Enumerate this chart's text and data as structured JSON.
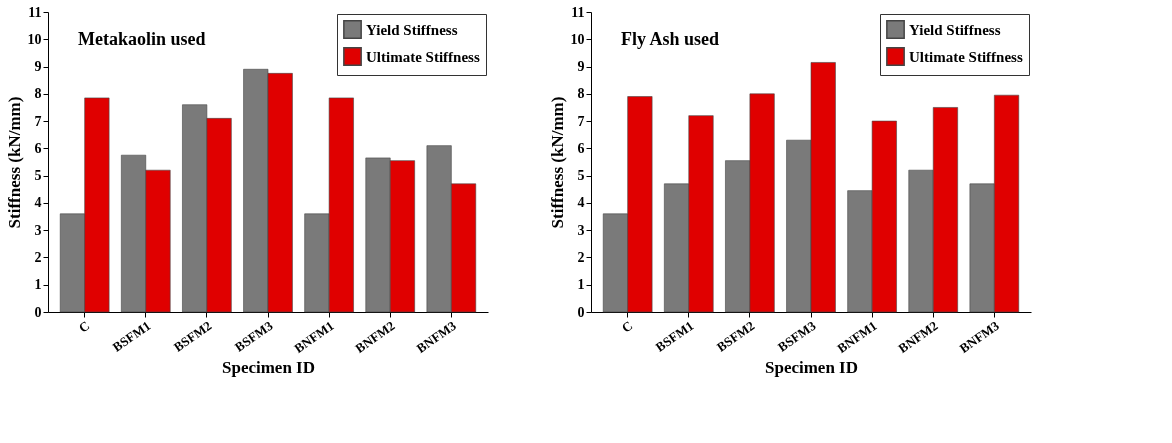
{
  "chart_data": [
    {
      "type": "bar",
      "title": "Metakaolin used",
      "xlabel": "Specimen ID",
      "ylabel": "Stiffness (kN/mm)",
      "categories": [
        "C",
        "BSFM1",
        "BSFM2",
        "BSFM3",
        "BNFM1",
        "BNFM2",
        "BNFM3"
      ],
      "series": [
        {
          "name": "Yield Stiffness",
          "color": "#7a7a7a",
          "values": [
            3.6,
            5.75,
            7.6,
            8.9,
            3.6,
            5.65,
            6.1
          ]
        },
        {
          "name": "Ultimate Stiffness",
          "color": "#e00000",
          "values": [
            7.85,
            5.2,
            7.1,
            8.75,
            7.85,
            5.55,
            4.7
          ]
        }
      ],
      "ylim": [
        0,
        11
      ],
      "yticks": [
        0,
        1,
        2,
        3,
        4,
        5,
        6,
        7,
        8,
        9,
        10,
        11
      ],
      "grid": false,
      "legend": "top right"
    },
    {
      "type": "bar",
      "title": "Fly Ash used",
      "xlabel": "Specimen ID",
      "ylabel": "Stiffness (kN/mm)",
      "categories": [
        "C",
        "BSFM1",
        "BSFM2",
        "BSFM3",
        "BNFM1",
        "BNFM2",
        "BNFM3"
      ],
      "series": [
        {
          "name": "Yield Stiffness",
          "color": "#7a7a7a",
          "values": [
            3.6,
            4.7,
            5.55,
            6.3,
            4.45,
            5.2,
            4.7
          ]
        },
        {
          "name": "Ultimate Stiffness",
          "color": "#e00000",
          "values": [
            7.9,
            7.2,
            8.0,
            9.15,
            7.0,
            7.5,
            7.95
          ]
        }
      ],
      "ylim": [
        0,
        11
      ],
      "yticks": [
        0,
        1,
        2,
        3,
        4,
        5,
        6,
        7,
        8,
        9,
        10,
        11
      ],
      "grid": false,
      "legend": "top right"
    }
  ]
}
